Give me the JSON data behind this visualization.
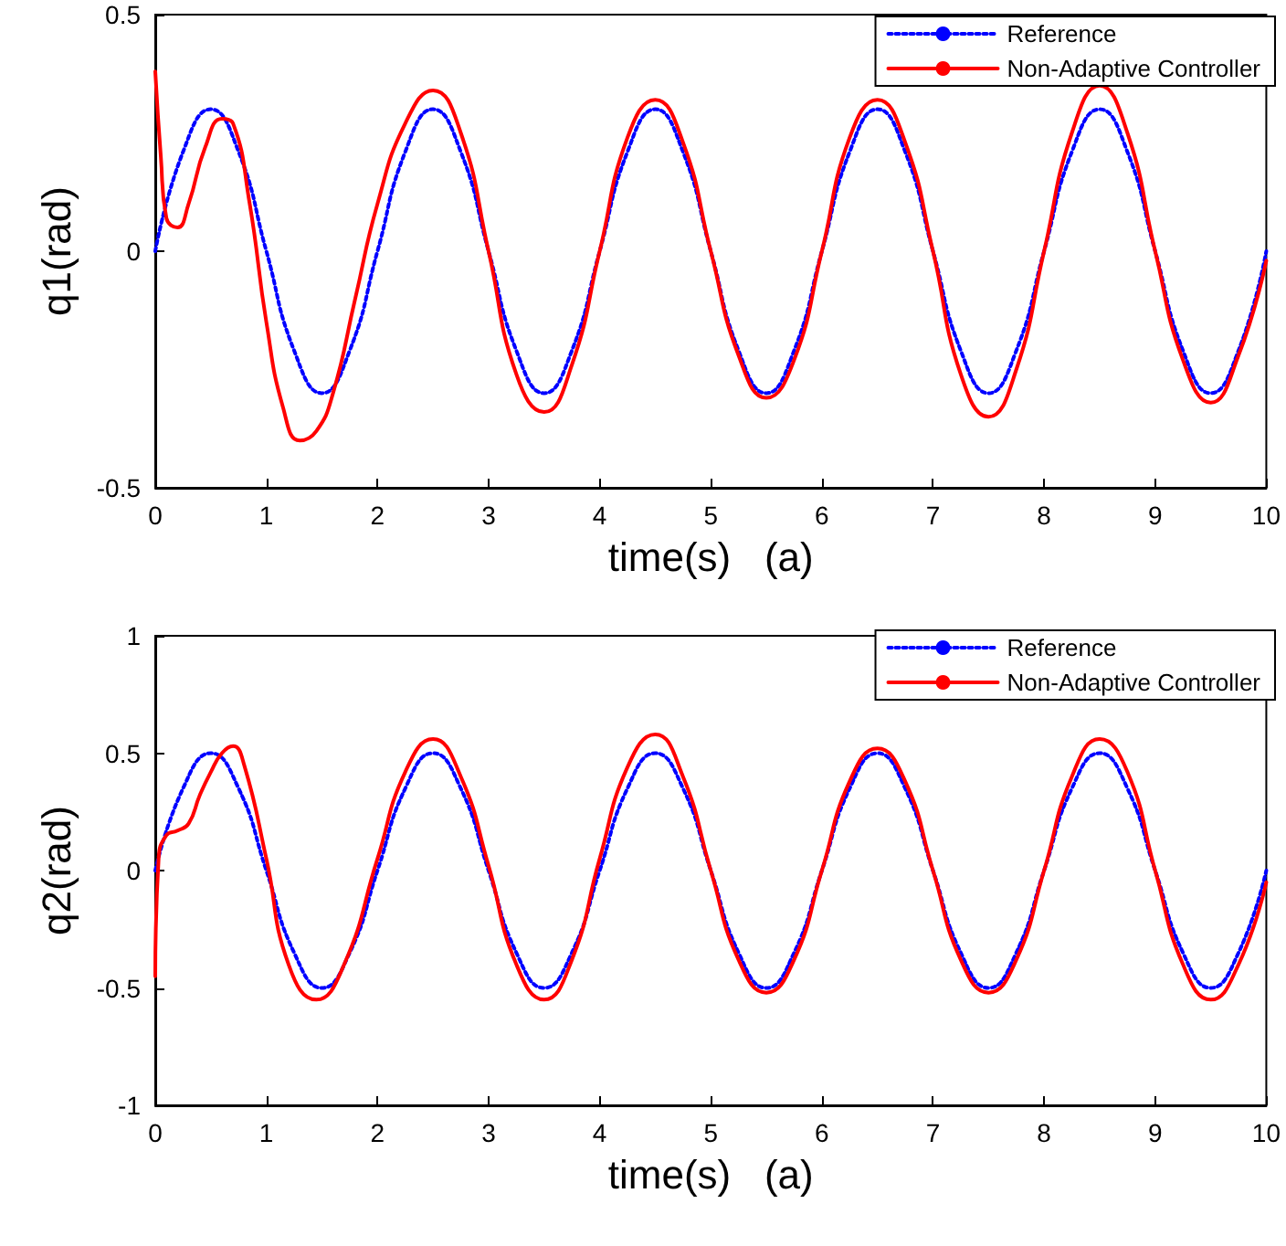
{
  "chart_data": [
    {
      "type": "line",
      "xlabel": "time(s)   (a)",
      "ylabel": "q1(rad)",
      "xlim": [
        0,
        10
      ],
      "ylim": [
        -0.5,
        0.5
      ],
      "xticks": [
        0,
        1,
        2,
        3,
        4,
        5,
        6,
        7,
        8,
        9,
        10
      ],
      "yticks": [
        -0.5,
        0,
        0.5
      ],
      "grid": false,
      "legend": "top right",
      "marker": "none",
      "series": [
        {
          "name": "Reference",
          "color": "#0000ff",
          "line_style": "dotted",
          "x": [
            0,
            0.25,
            0.5,
            0.75,
            1,
            1.25,
            1.5,
            1.75,
            2,
            2.25,
            2.5,
            2.75,
            3,
            3.25,
            3.5,
            3.75,
            4,
            4.25,
            4.5,
            4.75,
            5,
            5.25,
            5.5,
            5.75,
            6,
            6.25,
            6.5,
            6.75,
            7,
            7.25,
            7.5,
            7.75,
            8,
            8.25,
            8.5,
            8.75,
            9,
            9.25,
            9.5,
            9.75,
            10
          ],
          "values": [
            0,
            0.21,
            0.3,
            0.21,
            0,
            -0.21,
            -0.3,
            -0.21,
            0,
            0.21,
            0.3,
            0.21,
            0,
            -0.21,
            -0.3,
            -0.21,
            0,
            0.21,
            0.3,
            0.21,
            0,
            -0.21,
            -0.3,
            -0.21,
            0,
            0.21,
            0.3,
            0.21,
            0,
            -0.21,
            -0.3,
            -0.21,
            0,
            0.21,
            0.3,
            0.21,
            0,
            -0.21,
            -0.3,
            -0.21,
            0
          ]
        },
        {
          "name": "Non-Adaptive Controller",
          "color": "#ff0000",
          "line_style": "solid",
          "x": [
            0,
            0.05,
            0.1,
            0.2,
            0.3,
            0.45,
            0.6,
            0.7,
            0.85,
            1.0,
            1.15,
            1.3,
            1.45,
            1.6,
            1.8,
            2.0,
            2.25,
            2.5,
            2.75,
            3.0,
            3.25,
            3.5,
            3.75,
            4,
            4.25,
            4.5,
            4.75,
            5,
            5.25,
            5.5,
            5.75,
            6,
            6.25,
            6.5,
            6.75,
            7,
            7.25,
            7.5,
            7.75,
            8,
            8.25,
            8.5,
            8.75,
            9,
            9.25,
            9.5,
            9.75,
            10
          ],
          "values": [
            0.38,
            0.2,
            0.07,
            0.05,
            0.1,
            0.22,
            0.28,
            0.27,
            0.1,
            -0.15,
            -0.33,
            -0.4,
            -0.38,
            -0.3,
            -0.1,
            0.1,
            0.27,
            0.34,
            0.25,
            0,
            -0.26,
            -0.34,
            -0.24,
            0,
            0.24,
            0.32,
            0.23,
            0,
            -0.22,
            -0.31,
            -0.23,
            0,
            0.24,
            0.32,
            0.23,
            0,
            -0.26,
            -0.35,
            -0.25,
            0,
            0.25,
            0.35,
            0.25,
            0,
            -0.23,
            -0.32,
            -0.22,
            -0.02
          ]
        }
      ]
    },
    {
      "type": "line",
      "xlabel": "time(s)   (a)",
      "ylabel": "q2(rad)",
      "xlim": [
        0,
        10
      ],
      "ylim": [
        -1,
        1
      ],
      "xticks": [
        0,
        1,
        2,
        3,
        4,
        5,
        6,
        7,
        8,
        9,
        10
      ],
      "yticks": [
        -1,
        -0.5,
        0,
        0.5,
        1
      ],
      "grid": false,
      "legend": "top right",
      "marker": "none",
      "series": [
        {
          "name": "Reference",
          "color": "#0000ff",
          "line_style": "dotted",
          "x": [
            0,
            0.25,
            0.5,
            0.75,
            1,
            1.25,
            1.5,
            1.75,
            2,
            2.25,
            2.5,
            2.75,
            3,
            3.25,
            3.5,
            3.75,
            4,
            4.25,
            4.5,
            4.75,
            5,
            5.25,
            5.5,
            5.75,
            6,
            6.25,
            6.5,
            6.75,
            7,
            7.25,
            7.5,
            7.75,
            8,
            8.25,
            8.5,
            8.75,
            9,
            9.25,
            9.5,
            9.75,
            10
          ],
          "values": [
            0,
            0.35,
            0.5,
            0.35,
            0,
            -0.35,
            -0.5,
            -0.35,
            0,
            0.35,
            0.5,
            0.35,
            0,
            -0.35,
            -0.5,
            -0.35,
            0,
            0.35,
            0.5,
            0.35,
            0,
            -0.35,
            -0.5,
            -0.35,
            0,
            0.35,
            0.5,
            0.35,
            0,
            -0.35,
            -0.5,
            -0.35,
            0,
            0.35,
            0.5,
            0.35,
            0,
            -0.35,
            -0.5,
            -0.35,
            0
          ]
        },
        {
          "name": "Non-Adaptive Controller",
          "color": "#ff0000",
          "line_style": "solid",
          "x": [
            0,
            0.03,
            0.1,
            0.2,
            0.3,
            0.4,
            0.5,
            0.6,
            0.7,
            0.8,
            1.0,
            1.2,
            1.45,
            1.7,
            2.0,
            2.25,
            2.5,
            2.75,
            3.0,
            3.25,
            3.5,
            3.75,
            4,
            4.25,
            4.5,
            4.75,
            5,
            5.25,
            5.5,
            5.75,
            6,
            6.25,
            6.5,
            6.75,
            7,
            7.25,
            7.5,
            7.75,
            8,
            8.25,
            8.5,
            8.75,
            9,
            9.25,
            9.5,
            9.75,
            10
          ],
          "values": [
            -0.45,
            0.05,
            0.15,
            0.17,
            0.2,
            0.32,
            0.42,
            0.5,
            0.53,
            0.45,
            0.05,
            -0.4,
            -0.55,
            -0.4,
            0.05,
            0.42,
            0.56,
            0.4,
            0.02,
            -0.4,
            -0.55,
            -0.38,
            0.05,
            0.44,
            0.58,
            0.4,
            0,
            -0.38,
            -0.52,
            -0.38,
            0,
            0.38,
            0.52,
            0.38,
            0,
            -0.38,
            -0.52,
            -0.38,
            0,
            0.4,
            0.56,
            0.42,
            0,
            -0.4,
            -0.55,
            -0.4,
            -0.05
          ]
        }
      ]
    }
  ]
}
